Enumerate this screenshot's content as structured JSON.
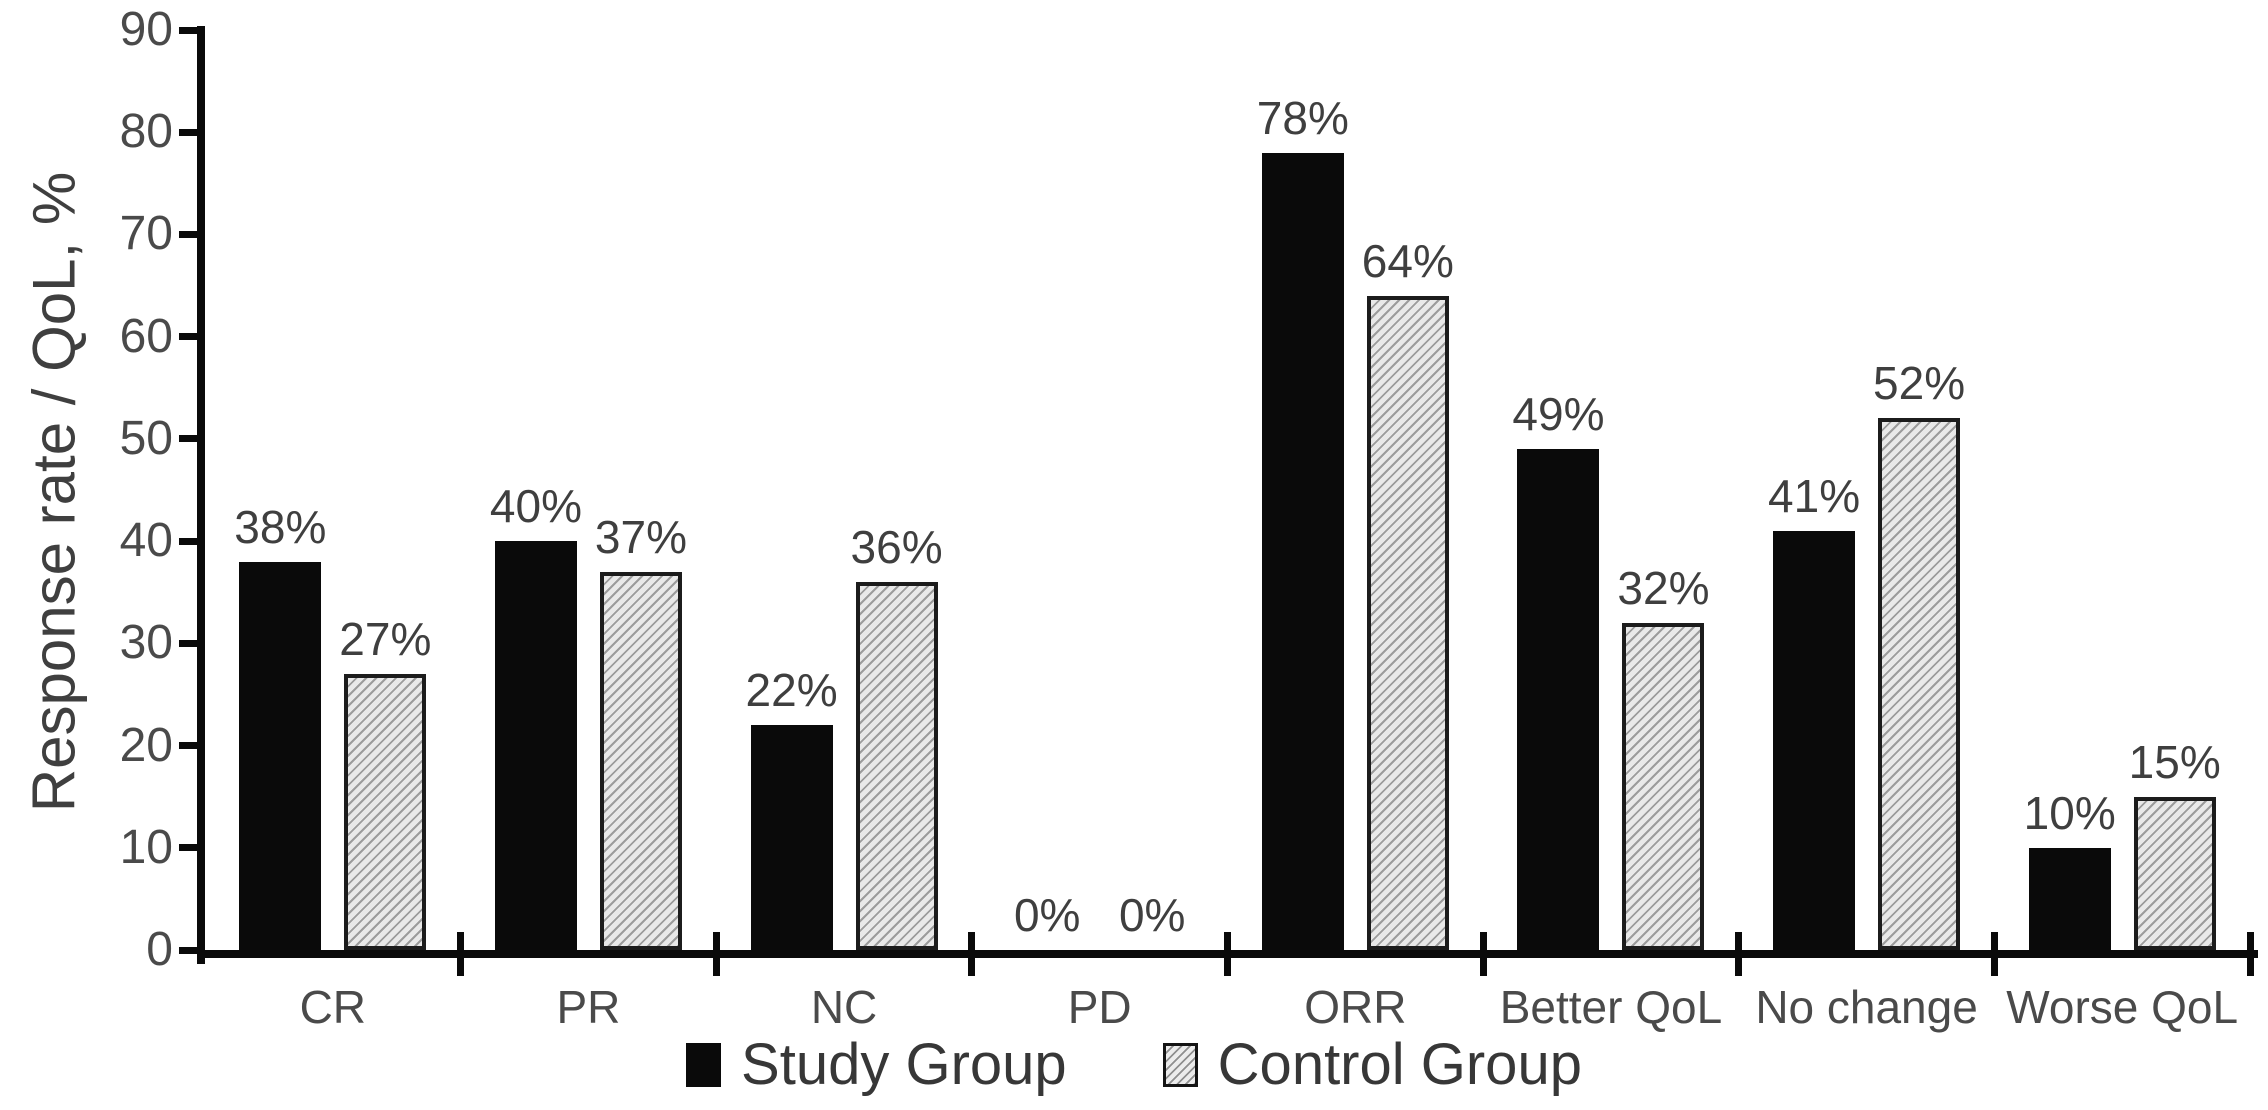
{
  "chart_data": {
    "type": "bar",
    "title": "",
    "ylabel": "Response rate / QoL, %",
    "xlabel": "",
    "ylim": [
      0,
      90
    ],
    "yticks": [
      0,
      10,
      20,
      30,
      40,
      50,
      60,
      70,
      80,
      90
    ],
    "grid": false,
    "legend_position": "bottom",
    "categories": [
      "CR",
      "PR",
      "NC",
      "PD",
      "ORR",
      "Better QoL",
      "No change",
      "Worse QoL"
    ],
    "series": [
      {
        "name": "Study Group",
        "style": "solid",
        "color": "#0a0a0a",
        "values": [
          38,
          40,
          22,
          0,
          78,
          49,
          41,
          10
        ],
        "bar_labels": [
          "38%",
          "40%",
          "22%",
          "0%",
          "78%",
          "49%",
          "41%",
          "10%"
        ]
      },
      {
        "name": "Control Group",
        "style": "hatched",
        "fill": "#e9e9e9",
        "hatch_color": "#9c9c9c",
        "border_color": "#1c1c1c",
        "values": [
          27,
          37,
          36,
          0,
          64,
          32,
          52,
          15
        ],
        "bar_labels": [
          "27%",
          "37%",
          "36%",
          "0%",
          "64%",
          "32%",
          "52%",
          "15%"
        ]
      }
    ]
  },
  "colors": {
    "background": "#ffffff",
    "axis": "#0a0a0a",
    "tick_label": "#4a4a4a",
    "value_label": "#3f3f3f",
    "category_label": "#4a4a4a",
    "legend_label": "#373737"
  }
}
